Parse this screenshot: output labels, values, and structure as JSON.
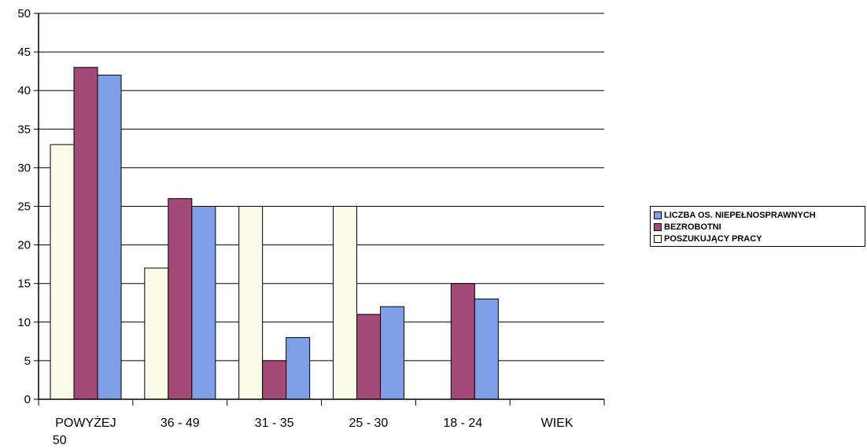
{
  "chart_data": {
    "type": "bar",
    "categories": [
      "POWYŻEJ 50",
      "36 - 49",
      "31 - 35",
      "25 - 30",
      "18 - 24",
      "WIEK"
    ],
    "category_label_lines": [
      [
        "POWYŻEJ",
        "50"
      ],
      [
        "36 - 49"
      ],
      [
        "31 - 35"
      ],
      [
        "25 - 30"
      ],
      [
        "18 - 24"
      ],
      [
        "WIEK"
      ]
    ],
    "series": [
      {
        "name": "POSZUKUJĄCY PRACY",
        "color": "#fafae6",
        "values": [
          33,
          17,
          25,
          25,
          null,
          null
        ]
      },
      {
        "name": "BEZROBOTNI",
        "color": "#a34a79",
        "values": [
          43,
          26,
          5,
          11,
          15,
          null
        ]
      },
      {
        "name": "LICZBA OS. NIEPEŁNOSPRAWNYCH",
        "color": "#7e9fe8",
        "values": [
          42,
          25,
          8,
          12,
          13,
          null
        ]
      }
    ],
    "ylim": [
      0,
      50
    ],
    "yticks": [
      "0",
      "5",
      "10",
      "15",
      "20",
      "25",
      "30",
      "35",
      "40",
      "45",
      "50"
    ],
    "grid": true,
    "legend_position": "right",
    "legend_order": [
      "LICZBA OS. NIEPEŁNOSPRAWNYCH",
      "BEZROBOTNI",
      "POSZUKUJĄCY PRACY"
    ],
    "title": "",
    "xlabel": "",
    "ylabel": ""
  }
}
